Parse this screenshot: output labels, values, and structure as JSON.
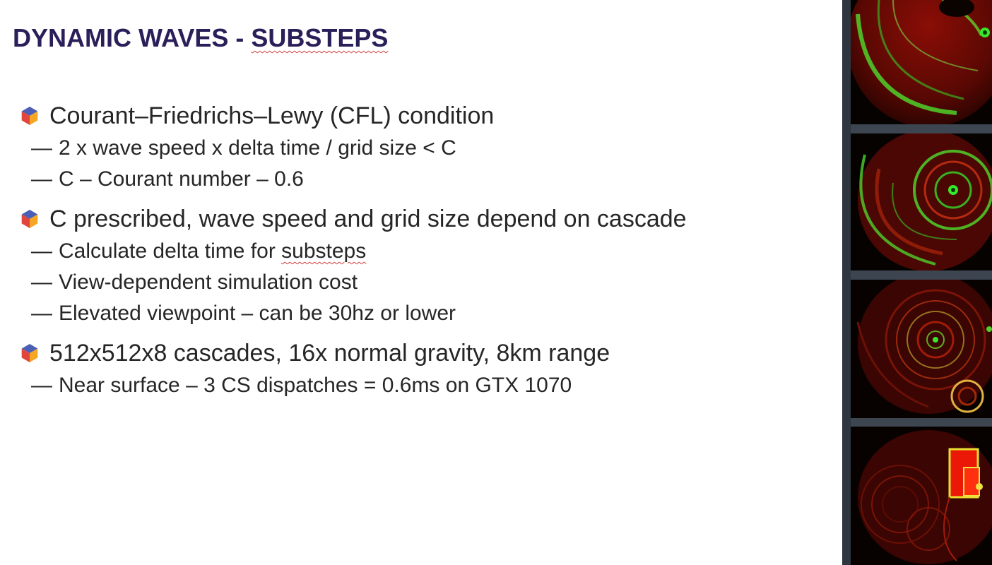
{
  "slide": {
    "title_main": "DYNAMIC WAVES - ",
    "title_underlined": "SUBSTEPS"
  },
  "bullets": [
    {
      "text": "Courant–Friedrichs–Lewy (CFL) condition",
      "subs": [
        {
          "text": "2 x wave speed x delta time / grid size < C"
        },
        {
          "text": "C – Courant number – 0.6"
        }
      ]
    },
    {
      "text": "C prescribed, wave speed and grid size depend on cascade",
      "subs": [
        {
          "pre": "Calculate delta time for ",
          "underlined": "substeps"
        },
        {
          "text": "View-dependent simulation cost"
        },
        {
          "text": "Elevated viewpoint – can be 30hz or lower"
        }
      ]
    },
    {
      "text": "512x512x8 cascades, 16x normal gravity, 8km range",
      "subs": [
        {
          "text": "Near surface – 3 CS dispatches = 0.6ms on GTX 1070"
        }
      ]
    }
  ],
  "dash_glyph": "—",
  "colors": {
    "title": "#2b1f5a",
    "body_text": "#262626",
    "hex_blue": "#4a5fb5",
    "hex_red": "#e0463c",
    "hex_orange": "#f5a623",
    "film_strip": "#3d4650"
  },
  "images": [
    {
      "name": "wave-simulation-frame-1"
    },
    {
      "name": "wave-simulation-frame-2"
    },
    {
      "name": "wave-simulation-frame-3"
    },
    {
      "name": "wave-simulation-frame-4"
    }
  ]
}
